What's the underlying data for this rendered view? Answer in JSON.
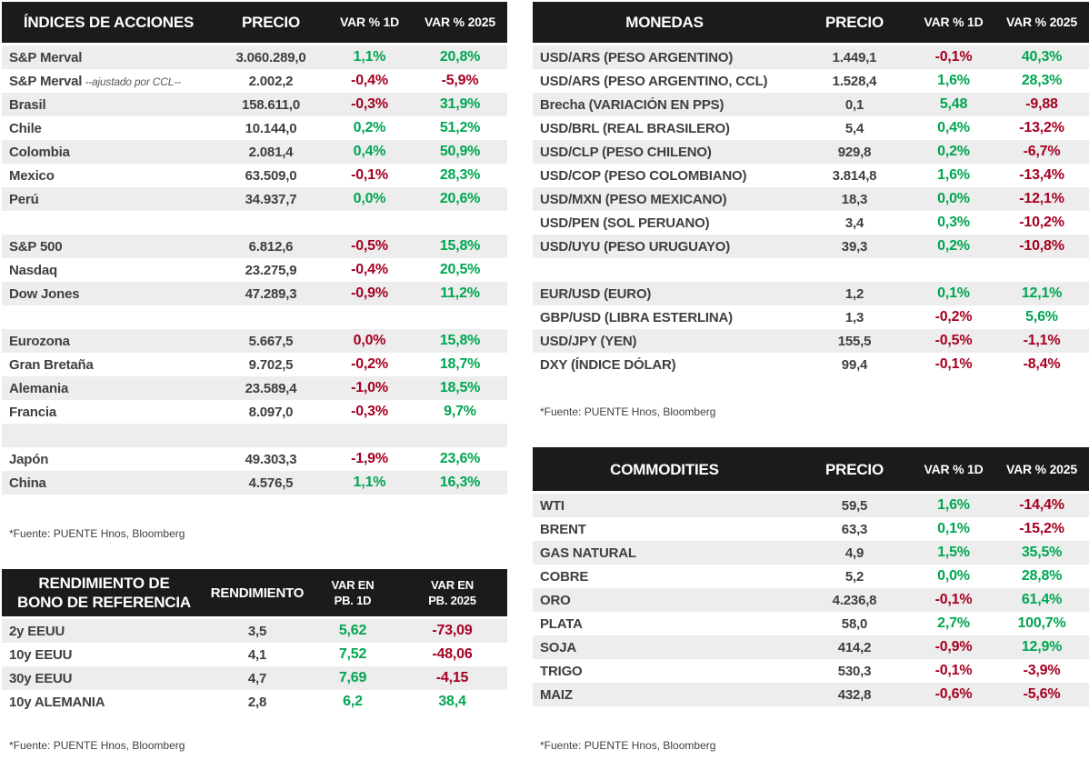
{
  "colors": {
    "positive": "#00a651",
    "negative": "#a50021",
    "header_bg": "#1b1b1b",
    "row_alt": "#ededed",
    "text": "#3f3f3f"
  },
  "source_note": "*Fuente: PUENTE Hnos, Bloomberg",
  "tables": {
    "indices": {
      "title": "ÍNDICES DE ACCIONES",
      "col_price": "PRECIO",
      "col_var1d": "VAR % 1D",
      "col_var2025": "VAR % 2025",
      "rows": [
        {
          "label": "S&P Merval",
          "price": "3.060.289,0",
          "var1d": [
            "1,1%",
            "pos"
          ],
          "var2025": [
            "20,8%",
            "pos"
          ]
        },
        {
          "label": "S&P Merval",
          "note": "--ajustado por CCL--",
          "price": "2.002,2",
          "var1d": [
            "-0,4%",
            "neg"
          ],
          "var2025": [
            "-5,9%",
            "neg"
          ]
        },
        {
          "label": "Brasil",
          "price": "158.611,0",
          "var1d": [
            "-0,3%",
            "neg"
          ],
          "var2025": [
            "31,9%",
            "pos"
          ]
        },
        {
          "label": "Chile",
          "price": "10.144,0",
          "var1d": [
            "0,2%",
            "pos"
          ],
          "var2025": [
            "51,2%",
            "pos"
          ]
        },
        {
          "label": "Colombia",
          "price": "2.081,4",
          "var1d": [
            "0,4%",
            "pos"
          ],
          "var2025": [
            "50,9%",
            "pos"
          ]
        },
        {
          "label": "Mexico",
          "price": "63.509,0",
          "var1d": [
            "-0,1%",
            "neg"
          ],
          "var2025": [
            "28,3%",
            "pos"
          ]
        },
        {
          "label": "Perú",
          "price": "34.937,7",
          "var1d": [
            "0,0%",
            "pos"
          ],
          "var2025": [
            "20,6%",
            "pos"
          ]
        },
        {
          "blank": true
        },
        {
          "label": "S&P 500",
          "price": "6.812,6",
          "var1d": [
            "-0,5%",
            "neg"
          ],
          "var2025": [
            "15,8%",
            "pos"
          ]
        },
        {
          "label": "Nasdaq",
          "price": "23.275,9",
          "var1d": [
            "-0,4%",
            "neg"
          ],
          "var2025": [
            "20,5%",
            "pos"
          ]
        },
        {
          "label": "Dow Jones",
          "price": "47.289,3",
          "var1d": [
            "-0,9%",
            "neg"
          ],
          "var2025": [
            "11,2%",
            "pos"
          ]
        },
        {
          "blank": true
        },
        {
          "label": "Eurozona",
          "price": "5.667,5",
          "var1d": [
            "0,0%",
            "neg"
          ],
          "var2025": [
            "15,8%",
            "pos"
          ]
        },
        {
          "label": "Gran Bretaña",
          "price": "9.702,5",
          "var1d": [
            "-0,2%",
            "neg"
          ],
          "var2025": [
            "18,7%",
            "pos"
          ]
        },
        {
          "label": "Alemania",
          "price": "23.589,4",
          "var1d": [
            "-1,0%",
            "neg"
          ],
          "var2025": [
            "18,5%",
            "pos"
          ]
        },
        {
          "label": "Francia",
          "price": "8.097,0",
          "var1d": [
            "-0,3%",
            "neg"
          ],
          "var2025": [
            "9,7%",
            "pos"
          ]
        },
        {
          "blank": true
        },
        {
          "label": "Japón",
          "price": "49.303,3",
          "var1d": [
            "-1,9%",
            "neg"
          ],
          "var2025": [
            "23,6%",
            "pos"
          ]
        },
        {
          "label": "China",
          "price": "4.576,5",
          "var1d": [
            "1,1%",
            "pos"
          ],
          "var2025": [
            "16,3%",
            "pos"
          ]
        }
      ]
    },
    "bonds": {
      "title": "RENDIMIENTO DE\nBONO DE REFERENCIA",
      "col_price": "RENDIMIENTO",
      "col_var1d": "VAR EN\nPB. 1D",
      "col_var2025": "VAR EN\nPB. 2025",
      "rows": [
        {
          "label": "2y EEUU",
          "price": "3,5",
          "var1d": [
            "5,62",
            "pos"
          ],
          "var2025": [
            "-73,09",
            "neg"
          ]
        },
        {
          "label": "10y EEUU",
          "price": "4,1",
          "var1d": [
            "7,52",
            "pos"
          ],
          "var2025": [
            "-48,06",
            "neg"
          ]
        },
        {
          "label": "30y EEUU",
          "price": "4,7",
          "var1d": [
            "7,69",
            "pos"
          ],
          "var2025": [
            "-4,15",
            "neg"
          ]
        },
        {
          "label": "10y ALEMANIA",
          "price": "2,8",
          "var1d": [
            "6,2",
            "pos"
          ],
          "var2025": [
            "38,4",
            "pos"
          ]
        }
      ]
    },
    "monedas": {
      "title": "MONEDAS",
      "col_price": "PRECIO",
      "col_var1d": "VAR % 1D",
      "col_var2025": "VAR % 2025",
      "rows": [
        {
          "label": "USD/ARS (PESO ARGENTINO)",
          "price": "1.449,1",
          "var1d": [
            "-0,1%",
            "neg"
          ],
          "var2025": [
            "40,3%",
            "pos"
          ]
        },
        {
          "label": "USD/ARS (PESO ARGENTINO, CCL)",
          "price": "1.528,4",
          "var1d": [
            "1,6%",
            "pos"
          ],
          "var2025": [
            "28,3%",
            "pos"
          ]
        },
        {
          "label": "Brecha (VARIACIÓN EN PPS)",
          "price": "0,1",
          "var1d": [
            "5,48",
            "pos"
          ],
          "var2025": [
            "-9,88",
            "neg"
          ]
        },
        {
          "label": "USD/BRL (REAL BRASILERO)",
          "price": "5,4",
          "var1d": [
            "0,4%",
            "pos"
          ],
          "var2025": [
            "-13,2%",
            "neg"
          ]
        },
        {
          "label": "USD/CLP (PESO CHILENO)",
          "price": "929,8",
          "var1d": [
            "0,2%",
            "pos"
          ],
          "var2025": [
            "-6,7%",
            "neg"
          ]
        },
        {
          "label": "USD/COP (PESO COLOMBIANO)",
          "price": "3.814,8",
          "var1d": [
            "1,6%",
            "pos"
          ],
          "var2025": [
            "-13,4%",
            "neg"
          ]
        },
        {
          "label": "USD/MXN (PESO MEXICANO)",
          "price": "18,3",
          "var1d": [
            "0,0%",
            "pos"
          ],
          "var2025": [
            "-12,1%",
            "neg"
          ]
        },
        {
          "label": "USD/PEN (SOL PERUANO)",
          "price": "3,4",
          "var1d": [
            "0,3%",
            "pos"
          ],
          "var2025": [
            "-10,2%",
            "neg"
          ]
        },
        {
          "label": "USD/UYU (PESO URUGUAYO)",
          "price": "39,3",
          "var1d": [
            "0,2%",
            "pos"
          ],
          "var2025": [
            "-10,8%",
            "neg"
          ]
        },
        {
          "blank": true
        },
        {
          "label": "EUR/USD (EURO)",
          "price": "1,2",
          "var1d": [
            "0,1%",
            "pos"
          ],
          "var2025": [
            "12,1%",
            "pos"
          ]
        },
        {
          "label": "GBP/USD (LIBRA ESTERLINA)",
          "price": "1,3",
          "var1d": [
            "-0,2%",
            "neg"
          ],
          "var2025": [
            "5,6%",
            "pos"
          ]
        },
        {
          "label": "USD/JPY (YEN)",
          "price": "155,5",
          "var1d": [
            "-0,5%",
            "neg"
          ],
          "var2025": [
            "-1,1%",
            "neg"
          ]
        },
        {
          "label": "DXY (ÍNDICE DÓLAR)",
          "price": "99,4",
          "var1d": [
            "-0,1%",
            "neg"
          ],
          "var2025": [
            "-8,4%",
            "neg"
          ]
        }
      ]
    },
    "commodities": {
      "title": "COMMODITIES",
      "col_price": "PRECIO",
      "col_var1d": "VAR % 1D",
      "col_var2025": "VAR % 2025",
      "rows": [
        {
          "label": "WTI",
          "price": "59,5",
          "var1d": [
            "1,6%",
            "pos"
          ],
          "var2025": [
            "-14,4%",
            "neg"
          ]
        },
        {
          "label": "BRENT",
          "price": "63,3",
          "var1d": [
            "0,1%",
            "pos"
          ],
          "var2025": [
            "-15,2%",
            "neg"
          ]
        },
        {
          "label": "GAS NATURAL",
          "price": "4,9",
          "var1d": [
            "1,5%",
            "pos"
          ],
          "var2025": [
            "35,5%",
            "pos"
          ]
        },
        {
          "label": "COBRE",
          "price": "5,2",
          "var1d": [
            "0,0%",
            "pos"
          ],
          "var2025": [
            "28,8%",
            "pos"
          ]
        },
        {
          "label": "ORO",
          "price": "4.236,8",
          "var1d": [
            "-0,1%",
            "neg"
          ],
          "var2025": [
            "61,4%",
            "pos"
          ]
        },
        {
          "label": "PLATA",
          "price": "58,0",
          "var1d": [
            "2,7%",
            "pos"
          ],
          "var2025": [
            "100,7%",
            "pos"
          ]
        },
        {
          "label": "SOJA",
          "price": "414,2",
          "var1d": [
            "-0,9%",
            "neg"
          ],
          "var2025": [
            "12,9%",
            "pos"
          ]
        },
        {
          "label": "TRIGO",
          "price": "530,3",
          "var1d": [
            "-0,1%",
            "neg"
          ],
          "var2025": [
            "-3,9%",
            "neg"
          ]
        },
        {
          "label": "MAIZ",
          "price": "432,8",
          "var1d": [
            "-0,6%",
            "neg"
          ],
          "var2025": [
            "-5,6%",
            "neg"
          ]
        }
      ]
    }
  }
}
